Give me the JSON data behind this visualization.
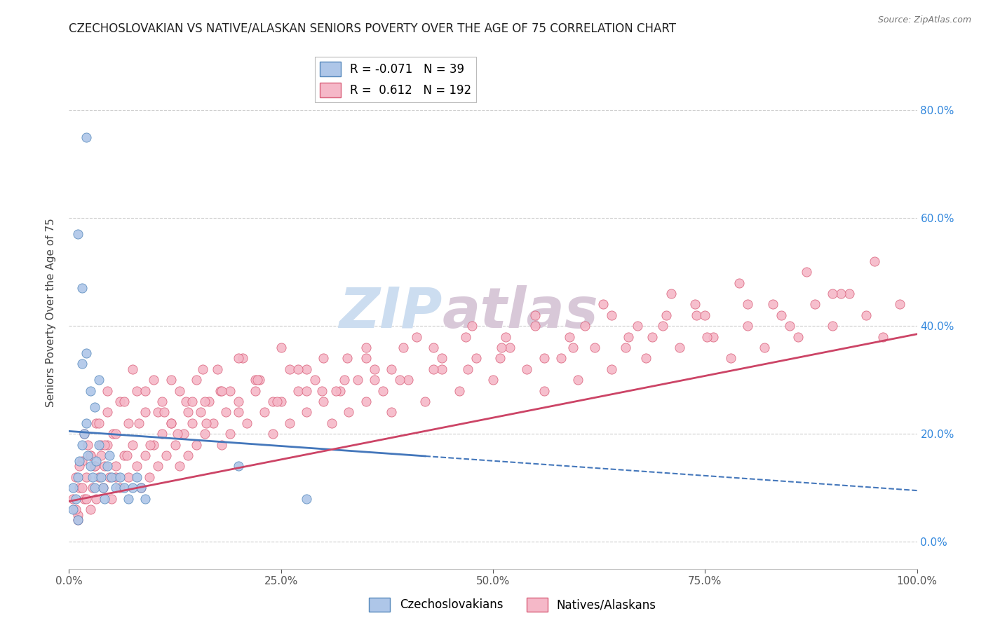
{
  "title": "CZECHOSLOVAKIAN VS NATIVE/ALASKAN SENIORS POVERTY OVER THE AGE OF 75 CORRELATION CHART",
  "source_text": "Source: ZipAtlas.com",
  "ylabel": "Seniors Poverty Over the Age of 75",
  "xlim": [
    0.0,
    1.0
  ],
  "ylim": [
    -0.05,
    0.9
  ],
  "xticks": [
    0.0,
    0.25,
    0.5,
    0.75,
    1.0
  ],
  "xticklabels": [
    "0.0%",
    "25.0%",
    "50.0%",
    "75.0%",
    "100.0%"
  ],
  "yticks_right": [
    0.0,
    0.2,
    0.4,
    0.6,
    0.8
  ],
  "yticklabels_right": [
    "0.0%",
    "20.0%",
    "40.0%",
    "60.0%",
    "80.0%"
  ],
  "blue_R": -0.071,
  "blue_N": 39,
  "pink_R": 0.612,
  "pink_N": 192,
  "blue_color": "#aec6e8",
  "blue_edge": "#5588bb",
  "pink_color": "#f5b8c8",
  "pink_edge": "#d9607a",
  "blue_line_color": "#4477bb",
  "pink_line_color": "#cc4466",
  "watermark_color": "#ccddf0",
  "watermark_color2": "#d8c8d8",
  "blue_scatter_x": [
    0.005,
    0.008,
    0.01,
    0.012,
    0.015,
    0.018,
    0.02,
    0.022,
    0.025,
    0.028,
    0.03,
    0.032,
    0.035,
    0.038,
    0.04,
    0.042,
    0.045,
    0.048,
    0.05,
    0.055,
    0.06,
    0.065,
    0.07,
    0.075,
    0.08,
    0.085,
    0.09,
    0.01,
    0.015,
    0.02,
    0.025,
    0.03,
    0.035,
    0.005,
    0.01,
    0.015,
    0.2,
    0.28,
    0.02
  ],
  "blue_scatter_y": [
    0.1,
    0.08,
    0.12,
    0.15,
    0.18,
    0.2,
    0.22,
    0.16,
    0.14,
    0.12,
    0.1,
    0.15,
    0.18,
    0.12,
    0.1,
    0.08,
    0.14,
    0.16,
    0.12,
    0.1,
    0.12,
    0.1,
    0.08,
    0.1,
    0.12,
    0.1,
    0.08,
    0.57,
    0.47,
    0.35,
    0.28,
    0.25,
    0.3,
    0.06,
    0.04,
    0.33,
    0.14,
    0.08,
    0.75
  ],
  "pink_scatter_x": [
    0.005,
    0.008,
    0.01,
    0.012,
    0.015,
    0.018,
    0.02,
    0.022,
    0.025,
    0.028,
    0.03,
    0.032,
    0.035,
    0.038,
    0.04,
    0.042,
    0.045,
    0.048,
    0.05,
    0.055,
    0.06,
    0.065,
    0.07,
    0.075,
    0.08,
    0.085,
    0.09,
    0.095,
    0.1,
    0.105,
    0.11,
    0.115,
    0.12,
    0.125,
    0.13,
    0.135,
    0.14,
    0.145,
    0.15,
    0.155,
    0.16,
    0.165,
    0.17,
    0.18,
    0.185,
    0.19,
    0.2,
    0.21,
    0.22,
    0.23,
    0.24,
    0.25,
    0.26,
    0.27,
    0.28,
    0.29,
    0.3,
    0.31,
    0.32,
    0.33,
    0.34,
    0.35,
    0.36,
    0.37,
    0.38,
    0.4,
    0.42,
    0.44,
    0.46,
    0.48,
    0.5,
    0.52,
    0.54,
    0.56,
    0.58,
    0.6,
    0.62,
    0.64,
    0.66,
    0.68,
    0.7,
    0.72,
    0.74,
    0.76,
    0.78,
    0.8,
    0.82,
    0.84,
    0.86,
    0.88,
    0.9,
    0.92,
    0.94,
    0.96,
    0.98,
    0.008,
    0.012,
    0.018,
    0.025,
    0.032,
    0.038,
    0.045,
    0.052,
    0.06,
    0.07,
    0.08,
    0.09,
    0.1,
    0.11,
    0.12,
    0.13,
    0.14,
    0.15,
    0.16,
    0.175,
    0.19,
    0.205,
    0.22,
    0.24,
    0.26,
    0.28,
    0.3,
    0.325,
    0.35,
    0.38,
    0.41,
    0.44,
    0.475,
    0.51,
    0.55,
    0.59,
    0.63,
    0.67,
    0.71,
    0.75,
    0.79,
    0.83,
    0.87,
    0.91,
    0.95,
    0.015,
    0.025,
    0.035,
    0.045,
    0.055,
    0.065,
    0.075,
    0.09,
    0.105,
    0.12,
    0.138,
    0.158,
    0.178,
    0.2,
    0.225,
    0.25,
    0.28,
    0.315,
    0.35,
    0.39,
    0.43,
    0.47,
    0.515,
    0.56,
    0.608,
    0.656,
    0.704,
    0.752,
    0.8,
    0.85,
    0.9,
    0.01,
    0.02,
    0.03,
    0.042,
    0.055,
    0.068,
    0.082,
    0.096,
    0.112,
    0.128,
    0.145,
    0.162,
    0.18,
    0.2,
    0.222,
    0.245,
    0.27,
    0.298,
    0.328,
    0.36,
    0.394,
    0.43,
    0.468,
    0.508,
    0.55,
    0.594,
    0.64,
    0.688,
    0.738
  ],
  "pink_scatter_y": [
    0.08,
    0.12,
    0.05,
    0.1,
    0.15,
    0.08,
    0.12,
    0.18,
    0.06,
    0.1,
    0.14,
    0.08,
    0.12,
    0.16,
    0.1,
    0.14,
    0.18,
    0.12,
    0.08,
    0.14,
    0.1,
    0.16,
    0.12,
    0.18,
    0.14,
    0.1,
    0.16,
    0.12,
    0.18,
    0.14,
    0.2,
    0.16,
    0.22,
    0.18,
    0.14,
    0.2,
    0.16,
    0.22,
    0.18,
    0.24,
    0.2,
    0.26,
    0.22,
    0.18,
    0.24,
    0.2,
    0.26,
    0.22,
    0.28,
    0.24,
    0.2,
    0.26,
    0.22,
    0.28,
    0.24,
    0.3,
    0.26,
    0.22,
    0.28,
    0.24,
    0.3,
    0.26,
    0.32,
    0.28,
    0.24,
    0.3,
    0.26,
    0.32,
    0.28,
    0.34,
    0.3,
    0.36,
    0.32,
    0.28,
    0.34,
    0.3,
    0.36,
    0.32,
    0.38,
    0.34,
    0.4,
    0.36,
    0.42,
    0.38,
    0.34,
    0.4,
    0.36,
    0.42,
    0.38,
    0.44,
    0.4,
    0.46,
    0.42,
    0.38,
    0.44,
    0.06,
    0.14,
    0.2,
    0.16,
    0.22,
    0.18,
    0.24,
    0.2,
    0.26,
    0.22,
    0.28,
    0.24,
    0.3,
    0.26,
    0.22,
    0.28,
    0.24,
    0.3,
    0.26,
    0.32,
    0.28,
    0.34,
    0.3,
    0.26,
    0.32,
    0.28,
    0.34,
    0.3,
    0.36,
    0.32,
    0.38,
    0.34,
    0.4,
    0.36,
    0.42,
    0.38,
    0.44,
    0.4,
    0.46,
    0.42,
    0.48,
    0.44,
    0.5,
    0.46,
    0.52,
    0.1,
    0.16,
    0.22,
    0.28,
    0.2,
    0.26,
    0.32,
    0.28,
    0.24,
    0.3,
    0.26,
    0.32,
    0.28,
    0.34,
    0.3,
    0.36,
    0.32,
    0.28,
    0.34,
    0.3,
    0.36,
    0.32,
    0.38,
    0.34,
    0.4,
    0.36,
    0.42,
    0.38,
    0.44,
    0.4,
    0.46,
    0.04,
    0.08,
    0.14,
    0.18,
    0.12,
    0.16,
    0.22,
    0.18,
    0.24,
    0.2,
    0.26,
    0.22,
    0.28,
    0.24,
    0.3,
    0.26,
    0.32,
    0.28,
    0.34,
    0.3,
    0.36,
    0.32,
    0.38,
    0.34,
    0.4,
    0.36,
    0.42,
    0.38,
    0.44
  ]
}
